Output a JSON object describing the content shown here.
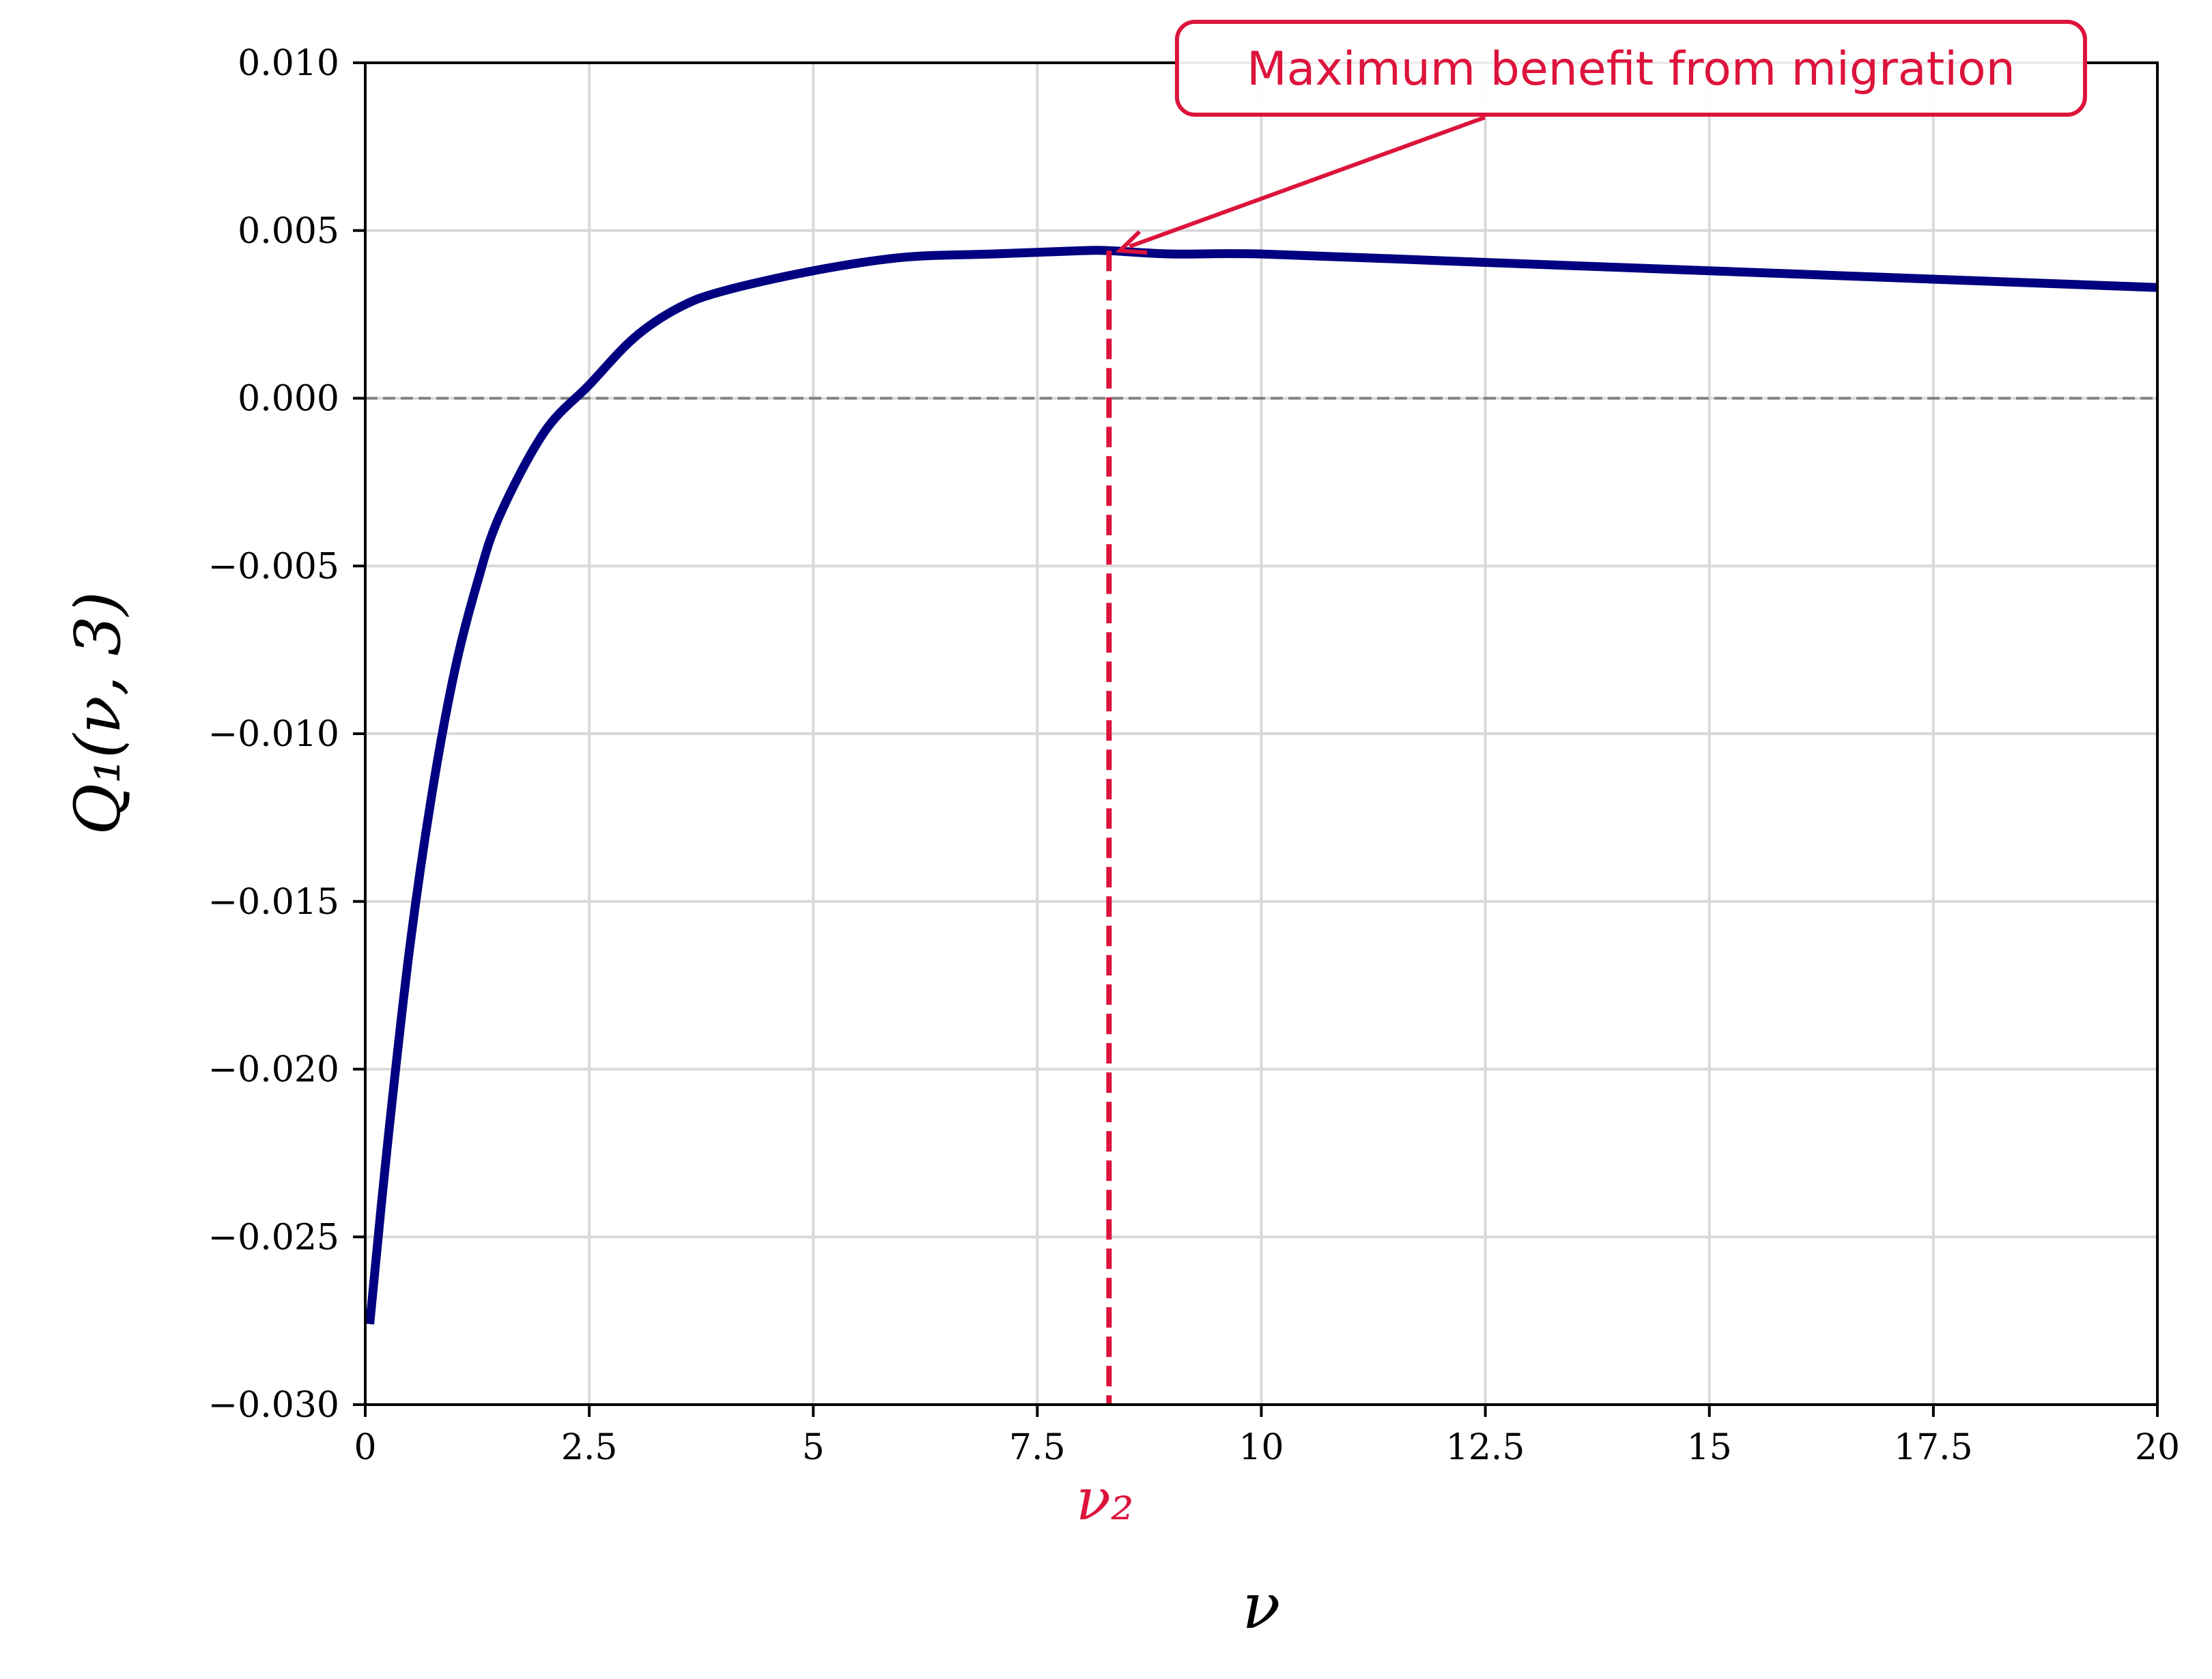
{
  "chart_data": {
    "type": "line",
    "title": "",
    "xlabel": "ν",
    "ylabel": "Q₁(ν, 3)",
    "xlim": [
      0,
      20
    ],
    "ylim": [
      -0.03,
      0.01
    ],
    "x_ticks": [
      0,
      2.5,
      5,
      7.5,
      10,
      12.5,
      15,
      17.5,
      20
    ],
    "x_tick_labels": [
      "0",
      "2.5",
      "5",
      "7.5",
      "10",
      "12.5",
      "15",
      "17.5",
      "20"
    ],
    "y_ticks": [
      -0.03,
      -0.025,
      -0.02,
      -0.015,
      -0.01,
      -0.005,
      0.0,
      0.005,
      0.01
    ],
    "y_tick_labels": [
      "−0.030",
      "−0.025",
      "−0.020",
      "−0.015",
      "−0.010",
      "−0.005",
      "0.000",
      "0.005",
      "0.010"
    ],
    "grid": true,
    "series": [
      {
        "color": "#000080",
        "x": [
          0.05,
          0.25,
          0.5,
          0.75,
          1.0,
          1.25,
          1.5,
          2.0,
          2.5,
          3.0,
          3.5,
          4.0,
          5.0,
          6.0,
          7.0,
          8.0,
          8.3,
          9.0,
          10.0,
          12.0,
          14.0,
          16.0,
          18.0,
          20.0
        ],
        "y": [
          -0.0276,
          -0.0222,
          -0.0163,
          -0.0117,
          -0.0081,
          -0.0055,
          -0.0035,
          -0.001,
          0.0004,
          0.0018,
          0.0027,
          0.0032,
          0.0038,
          0.0042,
          0.0043,
          0.0044,
          0.0044,
          0.0043,
          0.0043,
          0.0041,
          0.0039,
          0.0037,
          0.0035,
          0.0033
        ]
      }
    ],
    "reference_line": {
      "y": 0.0,
      "style": "dashed",
      "color": "#808080"
    },
    "marker_line": {
      "x": 8.3,
      "style": "dashed",
      "color": "#dc143c",
      "label": "ν₂"
    },
    "annotation": {
      "text": "Maximum benefit from migration",
      "target": [
        8.3,
        0.0044
      ],
      "color": "#dc143c"
    }
  }
}
